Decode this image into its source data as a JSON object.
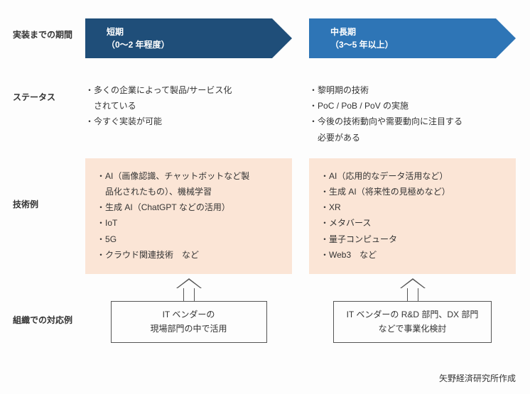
{
  "colors": {
    "short_arrow": "#1f4e79",
    "long_arrow": "#2e75b6",
    "tech_bg": "#fbe5d6",
    "border": "#555555",
    "text": "#333333",
    "background": "#fdfdfd"
  },
  "labels": {
    "period": "実装までの期間",
    "status": "ステータス",
    "tech": "技術例",
    "org": "組織での対応例"
  },
  "arrows": {
    "short": {
      "title": "短期",
      "subtitle": "（0～2 年程度）"
    },
    "long": {
      "title": "中長期",
      "subtitle": "（3～5 年以上）"
    }
  },
  "status": {
    "short": [
      "多くの企業によって製品/サービス化",
      "今すぐ実装が可能"
    ],
    "short_indent_after": [
      "されている",
      ""
    ],
    "long": [
      "黎明期の技術",
      "PoC / PoB / PoV の実施",
      "今後の技術動向や需要動向に注目する"
    ],
    "long_indent_after": [
      "",
      "",
      "必要がある"
    ]
  },
  "tech": {
    "short": [
      "AI（画像認識、チャットボットなど製",
      "生成 AI（ChatGPT などの活用）",
      "IoT",
      "5G",
      "クラウド関連技術　など"
    ],
    "short_indent_after": [
      "品化されたもの）、機械学習",
      "",
      "",
      "",
      ""
    ],
    "long": [
      "AI（応用的なデータ活用など）",
      "生成 AI（将来性の見極めなど）",
      "XR",
      "メタバース",
      "量子コンピュータ",
      "Web3　など"
    ]
  },
  "org": {
    "short": {
      "line1": "IT ベンダーの",
      "line2": "現場部門の中で活用"
    },
    "long": {
      "line1": "IT ベンダーの R&D 部門、DX 部門",
      "line2": "などで事業化検討"
    }
  },
  "credit": "矢野経済研究所作成"
}
